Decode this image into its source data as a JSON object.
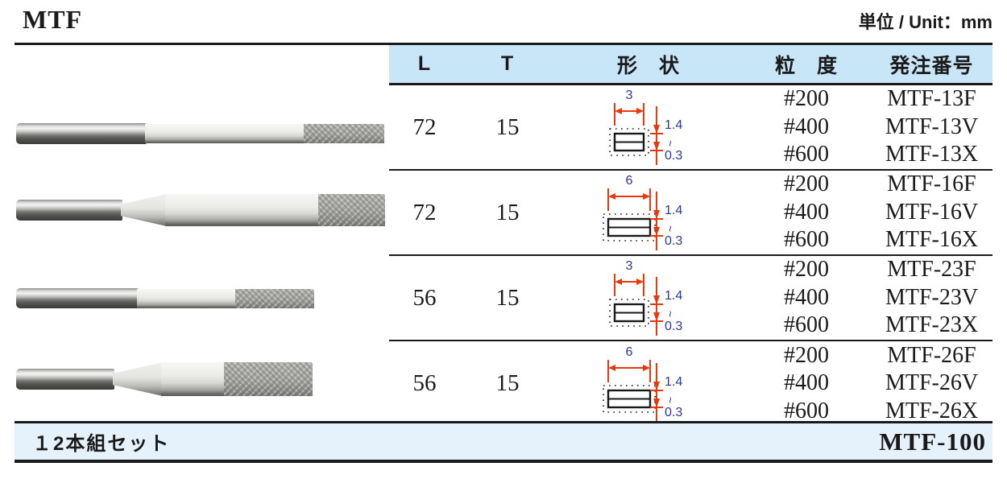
{
  "page": {
    "title": "MTF",
    "unit_label": "単位 / Unit：mm"
  },
  "colors": {
    "header_bg": "#c9e5f8",
    "footer_bg": "#e6f2fb",
    "rule_black": "#1a1a1a",
    "dimension_red": "#e8380c",
    "dimension_blue": "#2b3990"
  },
  "table": {
    "headers": {
      "l": "L",
      "t": "T",
      "shape": "形　状",
      "grit": "粒　度",
      "order": "発注番号"
    },
    "rows": [
      {
        "l": "72",
        "t": "15",
        "shape": {
          "width_label": "3",
          "thickness_top": "1.4",
          "thickness_tilde": "~",
          "thickness_bottom": "0.3",
          "profile": "narrow"
        },
        "variants": [
          {
            "grit": "#200",
            "order": "MTF-13F"
          },
          {
            "grit": "#400",
            "order": "MTF-13V"
          },
          {
            "grit": "#600",
            "order": "MTF-13X"
          }
        ]
      },
      {
        "l": "72",
        "t": "15",
        "shape": {
          "width_label": "6",
          "thickness_top": "1.4",
          "thickness_tilde": "~",
          "thickness_bottom": "0.3",
          "profile": "wide"
        },
        "variants": [
          {
            "grit": "#200",
            "order": "MTF-16F"
          },
          {
            "grit": "#400",
            "order": "MTF-16V"
          },
          {
            "grit": "#600",
            "order": "MTF-16X"
          }
        ]
      },
      {
        "l": "56",
        "t": "15",
        "shape": {
          "width_label": "3",
          "thickness_top": "1.4",
          "thickness_tilde": "~",
          "thickness_bottom": "0.3",
          "profile": "narrow"
        },
        "variants": [
          {
            "grit": "#200",
            "order": "MTF-23F"
          },
          {
            "grit": "#400",
            "order": "MTF-23V"
          },
          {
            "grit": "#600",
            "order": "MTF-23X"
          }
        ]
      },
      {
        "l": "56",
        "t": "15",
        "shape": {
          "width_label": "6",
          "thickness_top": "1.4",
          "thickness_tilde": "~",
          "thickness_bottom": "0.3",
          "profile": "wide"
        },
        "variants": [
          {
            "grit": "#200",
            "order": "MTF-26F"
          },
          {
            "grit": "#400",
            "order": "MTF-26V"
          },
          {
            "grit": "#600",
            "order": "MTF-26X"
          }
        ]
      }
    ]
  },
  "footer": {
    "set_label": "１2本組セット",
    "set_order": "MTF-100"
  }
}
